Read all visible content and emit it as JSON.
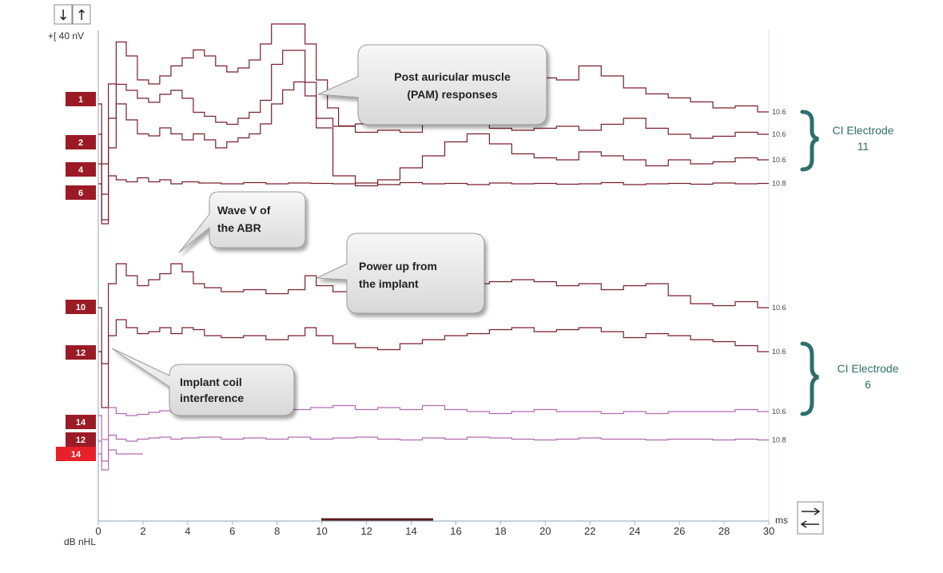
{
  "toolbar": {
    "down_arrow": "↓",
    "up_arrow": "↑",
    "scale_label": "+[ 40 nV"
  },
  "axis": {
    "xunit": "ms",
    "ylabel": "dB nHL"
  },
  "callouts": [
    {
      "lines": [
        "Post auricular muscle",
        "(PAM) responses"
      ]
    },
    {
      "lines": [
        "Wave V of",
        "the ABR"
      ]
    },
    {
      "lines": [
        "Power up from",
        "the implant"
      ]
    },
    {
      "lines": [
        "Implant coil",
        "interference"
      ]
    }
  ],
  "groups": [
    {
      "lines": [
        "CI Electrode",
        "11"
      ]
    },
    {
      "lines": [
        "CI Electrode",
        "6"
      ]
    }
  ],
  "colors": {
    "trace_dark": "#7a1f2b",
    "trace_light": "#b06ab0",
    "tag_dark": "#9b1b25",
    "tag_bright": "#e8202a",
    "brace": "#2e6f6a",
    "axis": "#9fb8c4"
  },
  "chart_data": {
    "type": "line",
    "xlabel": "",
    "ylabel": "dB nHL",
    "xunit": "ms",
    "xlim": [
      0,
      30
    ],
    "x_ticks": [
      0,
      2,
      4,
      6,
      8,
      10,
      12,
      14,
      16,
      18,
      20,
      22,
      24,
      26,
      28,
      30
    ],
    "x_tick_labels": [
      "0",
      "2",
      "4",
      "6",
      "8",
      "10",
      "12",
      "14",
      "16",
      "18",
      "20",
      "22",
      "24",
      "26",
      "28",
      "30"
    ],
    "scale": "40 nV",
    "series": [
      {
        "name": "1",
        "end_label": "10.6",
        "color": "#7a1f2b",
        "x": [
          0,
          0.3,
          0.6,
          1,
          1.5,
          2,
          2.5,
          3,
          3.5,
          4,
          4.5,
          5,
          5.5,
          6,
          6.5,
          7,
          7.5,
          8,
          8.5,
          9,
          9.5,
          10,
          10.5,
          11,
          12,
          13,
          14,
          15,
          16,
          17,
          18,
          19,
          20,
          21,
          22,
          23,
          24,
          25,
          26,
          27,
          28,
          29,
          30
        ],
        "y": [
          0,
          -150,
          50,
          155,
          120,
          60,
          50,
          70,
          95,
          115,
          135,
          120,
          95,
          80,
          90,
          110,
          150,
          200,
          200,
          200,
          150,
          60,
          -10,
          -55,
          -50,
          -30,
          -15,
          0,
          20,
          45,
          65,
          80,
          65,
          60,
          95,
          70,
          40,
          25,
          15,
          5,
          -10,
          -5,
          -20
        ]
      },
      {
        "name": "2",
        "end_label": "10.6",
        "color": "#7a1f2b",
        "x": [
          0,
          0.3,
          0.6,
          1,
          1.5,
          2,
          2.5,
          3,
          3.5,
          4,
          4.5,
          5,
          5.5,
          6,
          6.5,
          7,
          7.5,
          8,
          8.5,
          9,
          9.5,
          10,
          11,
          12,
          13,
          14,
          15,
          16,
          17,
          18,
          19,
          20,
          21,
          22,
          23,
          24,
          25,
          26,
          27,
          28,
          29,
          30
        ],
        "y": [
          0,
          -150,
          40,
          125,
          110,
          90,
          80,
          100,
          110,
          90,
          55,
          45,
          30,
          25,
          40,
          55,
          85,
          175,
          210,
          210,
          130,
          40,
          20,
          5,
          10,
          5,
          35,
          75,
          55,
          15,
          10,
          15,
          20,
          10,
          25,
          40,
          15,
          0,
          -10,
          -5,
          5,
          0
        ]
      },
      {
        "name": "4",
        "end_label": "10.6",
        "color": "#7a1f2b",
        "x": [
          0,
          0.3,
          0.6,
          1,
          1.5,
          2,
          2.5,
          3,
          3.5,
          4,
          4.5,
          5,
          5.5,
          6,
          6.5,
          7,
          7.5,
          8,
          8.5,
          9,
          9.5,
          10,
          11,
          12,
          13,
          14,
          15,
          16,
          17,
          18,
          19,
          20,
          21,
          22,
          23,
          24,
          25,
          26,
          27,
          28,
          29,
          30
        ],
        "y": [
          0,
          -150,
          40,
          150,
          110,
          75,
          70,
          90,
          75,
          60,
          75,
          60,
          40,
          55,
          65,
          75,
          100,
          150,
          185,
          205,
          170,
          90,
          -30,
          -55,
          -40,
          -10,
          20,
          55,
          75,
          50,
          25,
          15,
          10,
          30,
          20,
          10,
          -5,
          10,
          0,
          5,
          15,
          10
        ]
      },
      {
        "name": "6",
        "end_label": "10.8",
        "color": "#7a1f2b",
        "x": [
          0,
          0.3,
          0.6,
          1,
          1.5,
          2,
          2.5,
          3,
          3.5,
          4,
          5,
          6,
          7,
          8,
          9,
          10,
          11,
          12,
          13,
          14,
          15,
          16,
          17,
          18,
          19,
          20,
          21,
          22,
          23,
          24,
          25,
          26,
          27,
          28,
          29,
          30
        ],
        "y": [
          0,
          -90,
          20,
          10,
          5,
          15,
          5,
          10,
          0,
          5,
          2,
          0,
          3,
          0,
          2,
          1,
          0,
          2,
          -2,
          3,
          0,
          1,
          -2,
          2,
          0,
          1,
          -1,
          0,
          3,
          -2,
          0,
          1,
          -1,
          2,
          0,
          1
        ]
      },
      {
        "name": "10",
        "end_label": "10.6",
        "color": "#7a1f2b",
        "x": [
          0,
          0.3,
          0.6,
          1,
          1.5,
          2,
          2.5,
          3,
          3.5,
          4,
          4.5,
          5,
          6,
          7,
          8,
          9,
          9.5,
          10,
          11,
          12,
          13,
          14,
          15,
          16,
          17,
          18,
          19,
          20,
          21,
          22,
          23,
          24,
          25,
          26,
          27,
          28,
          29,
          30
        ],
        "y": [
          0,
          -140,
          60,
          110,
          80,
          55,
          70,
          85,
          110,
          90,
          60,
          50,
          40,
          45,
          35,
          45,
          80,
          55,
          40,
          30,
          35,
          20,
          15,
          30,
          60,
          65,
          70,
          65,
          55,
          60,
          45,
          55,
          60,
          30,
          10,
          5,
          15,
          0
        ]
      },
      {
        "name": "12",
        "end_label": "10.6",
        "color": "#7a1f2b",
        "x": [
          0,
          0.3,
          0.6,
          1,
          1.5,
          2,
          2.5,
          3,
          3.5,
          4,
          4.5,
          5,
          6,
          7,
          8,
          9,
          9.5,
          10,
          11,
          12,
          13,
          14,
          15,
          16,
          17,
          18,
          19,
          20,
          21,
          22,
          23,
          24,
          25,
          26,
          27,
          28,
          29,
          30
        ],
        "y": [
          0,
          -140,
          40,
          80,
          60,
          45,
          50,
          60,
          45,
          60,
          55,
          40,
          35,
          40,
          30,
          40,
          60,
          40,
          20,
          10,
          5,
          20,
          30,
          40,
          45,
          55,
          60,
          50,
          55,
          60,
          50,
          35,
          45,
          40,
          30,
          25,
          15,
          0
        ]
      },
      {
        "name": "14",
        "end_label": "10.6",
        "color": "#b06ab0",
        "x": [
          0,
          0.3,
          0.6,
          1,
          1.5,
          2,
          2.5,
          3,
          3.5,
          4,
          5,
          6,
          7,
          8,
          9,
          10,
          11,
          12,
          13,
          14,
          15,
          16,
          17,
          18,
          19,
          20,
          21,
          22,
          23,
          24,
          25,
          26,
          27,
          28,
          29,
          30
        ],
        "y": [
          0,
          -60,
          20,
          5,
          0,
          3,
          8,
          12,
          8,
          10,
          15,
          25,
          20,
          10,
          15,
          20,
          25,
          15,
          20,
          15,
          25,
          15,
          10,
          5,
          10,
          15,
          10,
          10,
          5,
          10,
          5,
          10,
          10,
          10,
          15,
          10
        ]
      },
      {
        "name": "12",
        "end_label": "10.8",
        "color": "#b06ab0",
        "x": [
          0,
          0.3,
          0.6,
          1,
          1.5,
          2,
          2.5,
          3,
          3.5,
          4,
          5,
          6,
          7,
          8,
          9,
          10,
          11,
          12,
          13,
          14,
          15,
          16,
          17,
          18,
          19,
          20,
          21,
          22,
          23,
          24,
          25,
          26,
          27,
          28,
          29,
          30
        ],
        "y": [
          0,
          -50,
          15,
          5,
          0,
          5,
          8,
          10,
          5,
          8,
          10,
          5,
          8,
          5,
          10,
          5,
          8,
          10,
          5,
          3,
          8,
          5,
          10,
          8,
          5,
          3,
          5,
          8,
          5,
          5,
          3,
          5,
          5,
          3,
          5,
          3
        ]
      },
      {
        "name": "14",
        "end_label": "",
        "color": "#b06ab0",
        "x": [
          0,
          0.3,
          0.6,
          1,
          1.5,
          2
        ],
        "y": [
          0,
          -40,
          10,
          0,
          0,
          0
        ]
      }
    ]
  }
}
